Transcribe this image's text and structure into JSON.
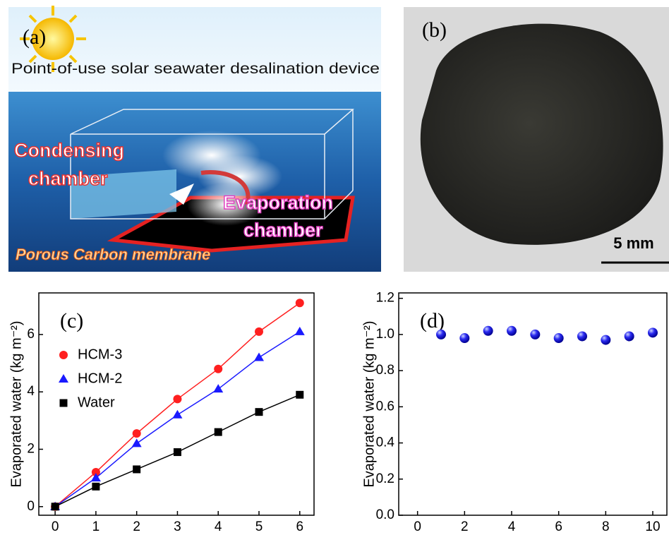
{
  "panel_a": {
    "label": "(a)",
    "title": "Point-of-use solar seawater desalination device",
    "condensing": [
      "Condensing",
      "chamber"
    ],
    "evaporation": [
      "Evaporation",
      "chamber"
    ],
    "membrane": "Porous Carbon membrane"
  },
  "panel_b": {
    "label": "(b)",
    "scale_bar": "5 mm"
  },
  "chart_data": [
    {
      "type": "line",
      "panel_label": "(c)",
      "y_label": "Evaporated water (kg m⁻²)",
      "x": [
        0,
        1,
        2,
        3,
        4,
        5,
        6
      ],
      "series": [
        {
          "name": "HCM-3",
          "color": "#ff1f1f",
          "marker": "circle",
          "values": [
            0,
            1.2,
            2.55,
            3.75,
            4.8,
            6.1,
            7.1
          ]
        },
        {
          "name": "HCM-2",
          "color": "#1a1aff",
          "marker": "triangle",
          "values": [
            0,
            1.0,
            2.2,
            3.2,
            4.1,
            5.2,
            6.1
          ]
        },
        {
          "name": "Water",
          "color": "#000000",
          "marker": "square",
          "values": [
            0,
            0.7,
            1.3,
            1.9,
            2.6,
            3.3,
            3.9
          ]
        }
      ],
      "xlim": [
        -0.4,
        6.35
      ],
      "ylim": [
        -0.3,
        7.45
      ],
      "xticks": [
        0,
        1,
        2,
        3,
        4,
        5,
        6
      ],
      "yticks": [
        0,
        2,
        4,
        6
      ],
      "legend": "upper left"
    },
    {
      "type": "scatter",
      "panel_label": "(d)",
      "y_label": "Evaporated water (kg m⁻²)",
      "x": [
        1,
        2,
        3,
        4,
        5,
        6,
        7,
        8,
        9,
        10
      ],
      "values": [
        1.0,
        0.98,
        1.02,
        1.02,
        1.0,
        0.98,
        0.99,
        0.97,
        0.99,
        1.01
      ],
      "color": "#1010e0",
      "xlim": [
        -0.8,
        10.6
      ],
      "ylim": [
        0,
        1.23
      ],
      "xticks": [
        0,
        2,
        4,
        6,
        8,
        10
      ],
      "yticks": [
        {
          "value": 0,
          "label": "0.0"
        },
        {
          "value": 0.2,
          "label": "0.2"
        },
        {
          "value": 0.4,
          "label": "0.4"
        },
        {
          "value": 0.6,
          "label": "0.6"
        },
        {
          "value": 0.8,
          "label": "0.8"
        },
        {
          "value": 1.0,
          "label": "1.0"
        },
        {
          "value": 1.2,
          "label": "1.2"
        }
      ]
    }
  ]
}
